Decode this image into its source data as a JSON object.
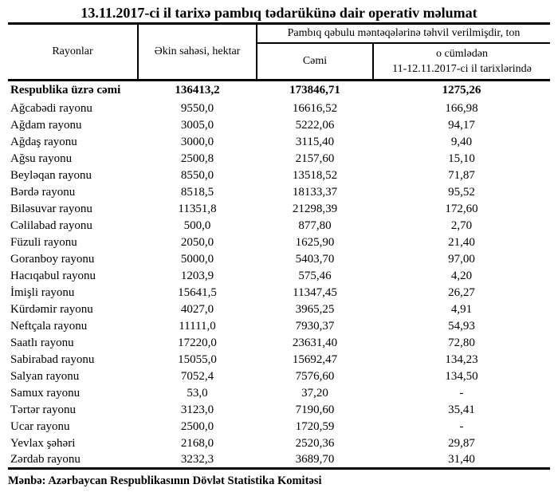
{
  "title": "13.11.2017-ci il tarixə pambıq tədarükünə dair operativ məlumat",
  "table": {
    "headers": {
      "region": "Rayonlar",
      "sown_area": "Əkin sahəsi, hektar",
      "delivery_group": "Pambıq qəbulu məntəqələrinə təhvil verilmişdir, ton",
      "total": "Cəmi",
      "recent_line1": "o cümlədən",
      "recent_line2": "11-12.11.2017-ci il tarixlərində"
    },
    "total_row": {
      "region": "Respublika üzrə cəmi",
      "sown_area_ha": "136413,2",
      "delivered_total_t": "173846,71",
      "delivered_11_12_t": "1275,26"
    },
    "rows": [
      {
        "region": "Ağcabədi rayonu",
        "sown_area_ha": "9550,0",
        "delivered_total_t": "16616,52",
        "delivered_11_12_t": "166,98"
      },
      {
        "region": "Ağdam rayonu",
        "sown_area_ha": "3005,0",
        "delivered_total_t": "5222,06",
        "delivered_11_12_t": "94,17"
      },
      {
        "region": "Ağdaş rayonu",
        "sown_area_ha": "3000,0",
        "delivered_total_t": "3115,40",
        "delivered_11_12_t": "9,40"
      },
      {
        "region": "Ağsu rayonu",
        "sown_area_ha": "2500,8",
        "delivered_total_t": "2157,60",
        "delivered_11_12_t": "15,10"
      },
      {
        "region": "Beyləqan rayonu",
        "sown_area_ha": "8550,0",
        "delivered_total_t": "13518,52",
        "delivered_11_12_t": "71,87"
      },
      {
        "region": "Bərdə rayonu",
        "sown_area_ha": "8518,5",
        "delivered_total_t": "18133,37",
        "delivered_11_12_t": "95,52"
      },
      {
        "region": "Biləsuvar rayonu",
        "sown_area_ha": "11351,8",
        "delivered_total_t": "21298,39",
        "delivered_11_12_t": "172,60"
      },
      {
        "region": "Cəlilabad rayonu",
        "sown_area_ha": "500,0",
        "delivered_total_t": "877,80",
        "delivered_11_12_t": "2,70"
      },
      {
        "region": "Füzuli rayonu",
        "sown_area_ha": "2050,0",
        "delivered_total_t": "1625,90",
        "delivered_11_12_t": "21,40"
      },
      {
        "region": "Goranboy rayonu",
        "sown_area_ha": "5000,0",
        "delivered_total_t": "5403,70",
        "delivered_11_12_t": "97,00"
      },
      {
        "region": "Hacıqabul rayonu",
        "sown_area_ha": "1203,9",
        "delivered_total_t": "575,46",
        "delivered_11_12_t": "4,20"
      },
      {
        "region": "İmişli rayonu",
        "sown_area_ha": "15641,5",
        "delivered_total_t": "11347,45",
        "delivered_11_12_t": "26,27"
      },
      {
        "region": "Kürdəmir rayonu",
        "sown_area_ha": "4027,0",
        "delivered_total_t": "3965,25",
        "delivered_11_12_t": "4,91"
      },
      {
        "region": "Neftçala rayonu",
        "sown_area_ha": "11111,0",
        "delivered_total_t": "7930,37",
        "delivered_11_12_t": "54,93"
      },
      {
        "region": "Saatlı rayonu",
        "sown_area_ha": "17220,0",
        "delivered_total_t": "23631,40",
        "delivered_11_12_t": "72,80"
      },
      {
        "region": "Sabirabad rayonu",
        "sown_area_ha": "15055,0",
        "delivered_total_t": "15692,47",
        "delivered_11_12_t": "134,23"
      },
      {
        "region": "Salyan rayonu",
        "sown_area_ha": "7052,4",
        "delivered_total_t": "7576,60",
        "delivered_11_12_t": "134,50"
      },
      {
        "region": "Samux rayonu",
        "sown_area_ha": "53,0",
        "delivered_total_t": "37,20",
        "delivered_11_12_t": "-"
      },
      {
        "region": "Tərtər rayonu",
        "sown_area_ha": "3123,0",
        "delivered_total_t": "7190,60",
        "delivered_11_12_t": "35,41"
      },
      {
        "region": "Ucar rayonu",
        "sown_area_ha": "2500,0",
        "delivered_total_t": "1720,59",
        "delivered_11_12_t": "-"
      },
      {
        "region": "Yevlax şəhəri",
        "sown_area_ha": "2168,0",
        "delivered_total_t": "2520,36",
        "delivered_11_12_t": "29,87"
      },
      {
        "region": "Zərdab rayonu",
        "sown_area_ha": "3232,3",
        "delivered_total_t": "3689,70",
        "delivered_11_12_t": "31,40"
      }
    ]
  },
  "footer": {
    "source": "Mənbə: Azərbaycan Respublikasının Dövlət Statistika Komitəsi"
  }
}
